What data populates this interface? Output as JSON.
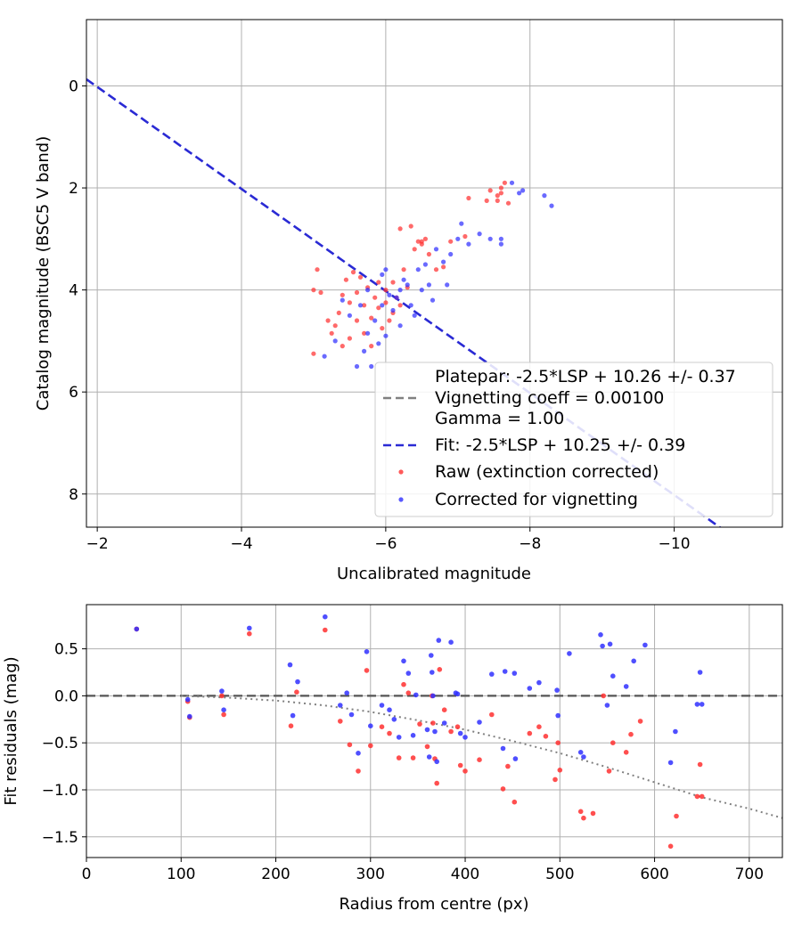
{
  "chart_data": [
    {
      "type": "scatter",
      "xlabel": "Uncalibrated magnitude",
      "ylabel": "Catalog magnitude (BSC5 V band)",
      "xlim": [
        -1.85,
        -11.5
      ],
      "ylim": [
        8.65,
        -1.3
      ],
      "x_inverted": true,
      "y_inverted": true,
      "xticks": [
        -2,
        -4,
        -6,
        -8,
        -10
      ],
      "xtick_labels": [
        "−2",
        "−4",
        "−6",
        "−8",
        "−10"
      ],
      "yticks": [
        0,
        2,
        4,
        6,
        8
      ],
      "ytick_labels": [
        "0",
        "2",
        "4",
        "6",
        "8"
      ],
      "grid": true,
      "legend_position": "bottom-right",
      "legend": [
        {
          "label": "Platepar: -2.5*LSP + 10.26 +/- 0.37",
          "marker": "none",
          "color": "#ffffff"
        },
        {
          "label": "Vignetting coeff = 0.00100",
          "marker": "dashed-line",
          "color": "#808080"
        },
        {
          "label": "Gamma = 1.00",
          "marker": "none",
          "color": "#ffffff"
        },
        {
          "label": "Fit: -2.5*LSP + 10.25 +/- 0.39",
          "marker": "dashed-line",
          "color": "#2a2ad4"
        },
        {
          "label": "Raw (extinction corrected)",
          "marker": "dot",
          "color": "#ff3030"
        },
        {
          "label": "Corrected for vignetting",
          "marker": "dot",
          "color": "#3030ff"
        }
      ],
      "lines": [
        {
          "name": "Fit: -2.5*LSP + 10.25 +/- 0.39",
          "slope": -1,
          "intercept": -1.98,
          "style": "dashed",
          "color": "#2a2ad4"
        }
      ],
      "series": [
        {
          "name": "Raw (extinction corrected)",
          "color": "#ff3030",
          "points": [
            [
              -5.0,
              4.0
            ],
            [
              -5.05,
              3.6
            ],
            [
              -5.0,
              5.25
            ],
            [
              -5.1,
              4.05
            ],
            [
              -5.2,
              4.6
            ],
            [
              -5.25,
              4.85
            ],
            [
              -5.3,
              4.7
            ],
            [
              -5.35,
              4.45
            ],
            [
              -5.4,
              5.1
            ],
            [
              -5.4,
              4.1
            ],
            [
              -5.45,
              3.8
            ],
            [
              -5.5,
              4.25
            ],
            [
              -5.5,
              4.95
            ],
            [
              -5.55,
              3.65
            ],
            [
              -5.6,
              4.05
            ],
            [
              -5.6,
              4.6
            ],
            [
              -5.65,
              3.75
            ],
            [
              -5.7,
              4.3
            ],
            [
              -5.7,
              4.85
            ],
            [
              -5.75,
              3.95
            ],
            [
              -5.8,
              4.55
            ],
            [
              -5.8,
              5.1
            ],
            [
              -5.85,
              4.15
            ],
            [
              -5.9,
              4.35
            ],
            [
              -5.9,
              3.85
            ],
            [
              -5.95,
              4.75
            ],
            [
              -6.0,
              4.25
            ],
            [
              -6.0,
              4.0
            ],
            [
              -6.05,
              4.6
            ],
            [
              -6.1,
              4.45
            ],
            [
              -6.1,
              3.85
            ],
            [
              -6.15,
              4.15
            ],
            [
              -6.2,
              4.3
            ],
            [
              -6.25,
              3.6
            ],
            [
              -6.3,
              3.95
            ],
            [
              -6.35,
              2.75
            ],
            [
              -6.4,
              3.2
            ],
            [
              -6.45,
              3.05
            ],
            [
              -6.5,
              3.05
            ],
            [
              -6.5,
              3.1
            ],
            [
              -6.55,
              3.0
            ],
            [
              -6.6,
              3.3
            ],
            [
              -6.7,
              3.6
            ],
            [
              -6.8,
              3.55
            ],
            [
              -6.9,
              3.05
            ],
            [
              -7.1,
              2.95
            ],
            [
              -7.15,
              2.2
            ],
            [
              -7.4,
              2.25
            ],
            [
              -7.45,
              2.05
            ],
            [
              -7.55,
              2.25
            ],
            [
              -7.6,
              2.0
            ],
            [
              -7.6,
              2.1
            ],
            [
              -7.65,
              1.9
            ],
            [
              -7.7,
              2.3
            ],
            [
              -7.55,
              2.15
            ],
            [
              -6.2,
              2.8
            ]
          ]
        },
        {
          "name": "Corrected for vignetting",
          "color": "#3030ff",
          "points": [
            [
              -5.15,
              5.3
            ],
            [
              -5.3,
              5.0
            ],
            [
              -5.4,
              4.2
            ],
            [
              -5.5,
              4.5
            ],
            [
              -5.6,
              5.5
            ],
            [
              -5.65,
              4.3
            ],
            [
              -5.7,
              5.2
            ],
            [
              -5.75,
              4.0
            ],
            [
              -5.75,
              4.85
            ],
            [
              -5.8,
              5.5
            ],
            [
              -5.85,
              4.6
            ],
            [
              -5.9,
              5.05
            ],
            [
              -5.95,
              4.3
            ],
            [
              -5.95,
              3.7
            ],
            [
              -6.0,
              3.6
            ],
            [
              -6.0,
              4.9
            ],
            [
              -6.05,
              4.1
            ],
            [
              -6.1,
              4.4
            ],
            [
              -6.15,
              4.15
            ],
            [
              -6.2,
              4.7
            ],
            [
              -6.25,
              3.8
            ],
            [
              -6.3,
              3.9
            ],
            [
              -6.35,
              4.3
            ],
            [
              -6.4,
              4.5
            ],
            [
              -6.45,
              3.6
            ],
            [
              -6.5,
              4.0
            ],
            [
              -6.55,
              3.5
            ],
            [
              -6.6,
              3.9
            ],
            [
              -6.65,
              4.2
            ],
            [
              -6.7,
              3.2
            ],
            [
              -6.8,
              3.45
            ],
            [
              -6.85,
              3.9
            ],
            [
              -6.9,
              3.3
            ],
            [
              -7.0,
              3.0
            ],
            [
              -7.05,
              2.7
            ],
            [
              -7.15,
              3.1
            ],
            [
              -7.3,
              2.9
            ],
            [
              -7.45,
              3.0
            ],
            [
              -7.6,
              3.1
            ],
            [
              -7.6,
              3.0
            ],
            [
              -7.75,
              1.9
            ],
            [
              -7.85,
              2.1
            ],
            [
              -7.9,
              2.05
            ],
            [
              -8.2,
              2.15
            ],
            [
              -8.3,
              2.35
            ],
            [
              -6.2,
              4.0
            ]
          ]
        }
      ]
    },
    {
      "type": "scatter",
      "xlabel": "Radius from centre (px)",
      "ylabel": "Fit residuals (mag)",
      "xlim": [
        0,
        735
      ],
      "ylim": [
        -1.72,
        0.97
      ],
      "xticks": [
        0,
        100,
        200,
        300,
        400,
        500,
        600,
        700
      ],
      "xtick_labels": [
        "0",
        "100",
        "200",
        "300",
        "400",
        "500",
        "600",
        "700"
      ],
      "yticks": [
        0.5,
        0.0,
        -0.5,
        -1.0,
        -1.5
      ],
      "ytick_labels": [
        "0.5",
        "0.0",
        "−0.5",
        "−1.0",
        "−1.5"
      ],
      "grid": true,
      "lines": [
        {
          "name": "zero",
          "type": "horizontal",
          "y": 0.0,
          "style": "dashed",
          "color": "#555555"
        },
        {
          "name": "vignetting model",
          "type": "curve",
          "style": "dotted",
          "color": "#808080",
          "x": [
            100,
            150,
            200,
            250,
            300,
            350,
            400,
            450,
            500,
            550,
            600,
            650,
            700,
            735
          ],
          "y": [
            0.0,
            -0.02,
            -0.05,
            -0.1,
            -0.17,
            -0.26,
            -0.36,
            -0.48,
            -0.61,
            -0.76,
            -0.92,
            -1.08,
            -1.2,
            -1.3
          ]
        }
      ],
      "series": [
        {
          "name": "Raw (extinction corrected)",
          "color": "#ff3030",
          "points": [
            [
              53,
              0.71
            ],
            [
              107,
              -0.06
            ],
            [
              109,
              -0.23
            ],
            [
              143,
              0.0
            ],
            [
              145,
              -0.2
            ],
            [
              172,
              0.66
            ],
            [
              216,
              -0.32
            ],
            [
              222,
              0.04
            ],
            [
              252,
              0.7
            ],
            [
              268,
              -0.27
            ],
            [
              278,
              -0.52
            ],
            [
              287,
              -0.8
            ],
            [
              296,
              0.27
            ],
            [
              300,
              -0.53
            ],
            [
              312,
              -0.33
            ],
            [
              320,
              -0.4
            ],
            [
              330,
              -0.66
            ],
            [
              335,
              0.12
            ],
            [
              340,
              0.03
            ],
            [
              345,
              -0.66
            ],
            [
              352,
              -0.3
            ],
            [
              360,
              -0.54
            ],
            [
              365,
              0.0
            ],
            [
              366,
              -0.29
            ],
            [
              368,
              -0.67
            ],
            [
              370,
              -0.93
            ],
            [
              373,
              0.28
            ],
            [
              378,
              -0.15
            ],
            [
              385,
              -0.38
            ],
            [
              392,
              -0.33
            ],
            [
              395,
              -0.74
            ],
            [
              400,
              -0.8
            ],
            [
              415,
              -0.68
            ],
            [
              428,
              -0.2
            ],
            [
              440,
              -0.99
            ],
            [
              445,
              -0.75
            ],
            [
              452,
              -1.13
            ],
            [
              468,
              -0.4
            ],
            [
              478,
              -0.33
            ],
            [
              485,
              -0.43
            ],
            [
              495,
              -0.89
            ],
            [
              498,
              -0.5
            ],
            [
              500,
              -0.79
            ],
            [
              522,
              -1.23
            ],
            [
              525,
              -1.3
            ],
            [
              535,
              -1.25
            ],
            [
              546,
              0.0
            ],
            [
              552,
              -0.8
            ],
            [
              556,
              -0.5
            ],
            [
              570,
              -0.6
            ],
            [
              575,
              -0.41
            ],
            [
              585,
              -0.27
            ],
            [
              617,
              -1.6
            ],
            [
              623,
              -1.28
            ],
            [
              645,
              -1.07
            ],
            [
              648,
              -0.73
            ],
            [
              650,
              -1.07
            ]
          ]
        },
        {
          "name": "Corrected for vignetting",
          "color": "#3030ff",
          "points": [
            [
              53,
              0.71
            ],
            [
              107,
              -0.04
            ],
            [
              109,
              -0.22
            ],
            [
              143,
              0.05
            ],
            [
              145,
              -0.15
            ],
            [
              172,
              0.72
            ],
            [
              215,
              0.33
            ],
            [
              218,
              -0.21
            ],
            [
              223,
              0.15
            ],
            [
              252,
              0.84
            ],
            [
              268,
              -0.1
            ],
            [
              275,
              0.03
            ],
            [
              280,
              -0.2
            ],
            [
              287,
              -0.61
            ],
            [
              296,
              0.47
            ],
            [
              300,
              -0.32
            ],
            [
              312,
              -0.1
            ],
            [
              320,
              -0.15
            ],
            [
              325,
              -0.25
            ],
            [
              330,
              -0.44
            ],
            [
              335,
              0.37
            ],
            [
              340,
              0.24
            ],
            [
              345,
              -0.42
            ],
            [
              348,
              0.01
            ],
            [
              360,
              -0.36
            ],
            [
              362,
              -0.65
            ],
            [
              364,
              0.43
            ],
            [
              365,
              0.25
            ],
            [
              366,
              0.0
            ],
            [
              368,
              -0.38
            ],
            [
              370,
              -0.7
            ],
            [
              372,
              0.59
            ],
            [
              378,
              -0.29
            ],
            [
              385,
              0.57
            ],
            [
              390,
              0.03
            ],
            [
              392,
              0.02
            ],
            [
              395,
              -0.4
            ],
            [
              400,
              -0.44
            ],
            [
              415,
              -0.28
            ],
            [
              428,
              0.23
            ],
            [
              440,
              -0.56
            ],
            [
              442,
              0.26
            ],
            [
              452,
              0.24
            ],
            [
              453,
              -0.67
            ],
            [
              468,
              0.08
            ],
            [
              478,
              0.14
            ],
            [
              497,
              0.06
            ],
            [
              498,
              -0.21
            ],
            [
              510,
              0.45
            ],
            [
              522,
              -0.6
            ],
            [
              525,
              -0.65
            ],
            [
              543,
              0.65
            ],
            [
              545,
              0.53
            ],
            [
              550,
              -0.1
            ],
            [
              553,
              0.55
            ],
            [
              556,
              0.21
            ],
            [
              570,
              0.1
            ],
            [
              578,
              0.37
            ],
            [
              590,
              0.54
            ],
            [
              617,
              -0.71
            ],
            [
              622,
              -0.38
            ],
            [
              645,
              -0.09
            ],
            [
              648,
              0.25
            ],
            [
              650,
              -0.09
            ]
          ]
        }
      ]
    }
  ]
}
